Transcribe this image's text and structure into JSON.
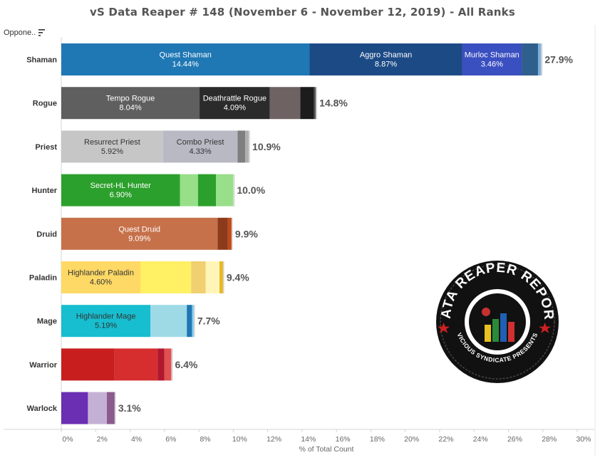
{
  "title": "vS Data Reaper # 148 (November 6 - November 12, 2019) - All Ranks",
  "sort_header": {
    "label": "Oppone..",
    "icon": "sort-descending-icon"
  },
  "logo": {
    "top_text": "DATA REAPER REPORT",
    "bottom_text": "VICIOUS SYNDICATE PRESENTS"
  },
  "chart_data": {
    "type": "bar",
    "orientation": "horizontal",
    "stacked": true,
    "xlabel": "% of Total Count",
    "ylabel": "",
    "xlim": [
      0,
      30
    ],
    "xticks": [
      "0%",
      "2%",
      "4%",
      "6%",
      "8%",
      "10%",
      "12%",
      "14%",
      "16%",
      "18%",
      "20%",
      "22%",
      "24%",
      "26%",
      "28%",
      "30%"
    ],
    "grid": false,
    "categories": [
      "Shaman",
      "Rogue",
      "Priest",
      "Hunter",
      "Druid",
      "Paladin",
      "Mage",
      "Warrior",
      "Warlock"
    ],
    "totals": [
      "27.9%",
      "14.8%",
      "10.9%",
      "10.0%",
      "9.9%",
      "9.4%",
      "7.7%",
      "6.4%",
      "3.1%"
    ],
    "bars": [
      {
        "category": "Shaman",
        "segments": [
          {
            "name": "Quest Shaman",
            "value": 14.44,
            "label": "14.44%",
            "color": "#1f77b4",
            "text_color": "#ffffff"
          },
          {
            "name": "Aggro Shaman",
            "value": 8.87,
            "label": "8.87%",
            "color": "#1c4a85",
            "text_color": "#ffffff"
          },
          {
            "name": "Murloc Shaman",
            "value": 3.46,
            "label": "3.46%",
            "color": "#3a4fc0",
            "text_color": "#ffffff"
          },
          {
            "name": "",
            "value": 0.95,
            "label": "",
            "color": "#2f5f8c"
          },
          {
            "name": "",
            "value": 0.18,
            "label": "",
            "color": "#7fb0dd"
          }
        ]
      },
      {
        "category": "Rogue",
        "segments": [
          {
            "name": "Tempo Rogue",
            "value": 8.04,
            "label": "8.04%",
            "color": "#5f5f5f",
            "text_color": "#ffffff"
          },
          {
            "name": "Deathrattle Rogue",
            "value": 4.09,
            "label": "4.09%",
            "color": "#2b2b2b",
            "text_color": "#ffffff"
          },
          {
            "name": "",
            "value": 1.77,
            "label": "",
            "color": "#6e6362"
          },
          {
            "name": "",
            "value": 0.8,
            "label": "",
            "color": "#1c1c1c"
          },
          {
            "name": "",
            "value": 0.1,
            "label": "",
            "color": "#555555"
          }
        ]
      },
      {
        "category": "Priest",
        "segments": [
          {
            "name": "Resurrect Priest",
            "value": 5.92,
            "label": "5.92%",
            "color": "#c6c6c6",
            "text_color": "#333333"
          },
          {
            "name": "Combo Priest",
            "value": 4.33,
            "label": "4.33%",
            "color": "#b9b9c4",
            "text_color": "#333333"
          },
          {
            "name": "",
            "value": 0.45,
            "label": "",
            "color": "#7f7f7f"
          },
          {
            "name": "",
            "value": 0.2,
            "label": "",
            "color": "#b0b0b0"
          }
        ]
      },
      {
        "category": "Hunter",
        "segments": [
          {
            "name": "Secret-HL Hunter",
            "value": 6.9,
            "label": "6.90%",
            "color": "#2ca02c",
            "text_color": "#ffffff"
          },
          {
            "name": "",
            "value": 1.05,
            "label": "",
            "color": "#98df8a"
          },
          {
            "name": "",
            "value": 1.05,
            "label": "",
            "color": "#2ca02c"
          },
          {
            "name": "",
            "value": 1.0,
            "label": "",
            "color": "#98df8a"
          }
        ]
      },
      {
        "category": "Druid",
        "segments": [
          {
            "name": "Quest Druid",
            "value": 9.09,
            "label": "9.09%",
            "color": "#c6714a",
            "text_color": "#ffffff"
          },
          {
            "name": "",
            "value": 0.6,
            "label": "",
            "color": "#8c3a1c"
          },
          {
            "name": "",
            "value": 0.21,
            "label": "",
            "color": "#c04a1a"
          }
        ]
      },
      {
        "category": "Paladin",
        "segments": [
          {
            "name": "Highlander Paladin",
            "value": 4.6,
            "label": "4.60%",
            "color": "#ffd966",
            "text_color": "#333333"
          },
          {
            "name": "",
            "value": 2.95,
            "label": "",
            "color": "#fff064"
          },
          {
            "name": "",
            "value": 0.85,
            "label": "",
            "color": "#f0d070"
          },
          {
            "name": "",
            "value": 0.8,
            "label": "",
            "color": "#fff5b8"
          },
          {
            "name": "",
            "value": 0.2,
            "label": "",
            "color": "#e8b820"
          }
        ]
      },
      {
        "category": "Mage",
        "segments": [
          {
            "name": "Highlander Mage",
            "value": 5.19,
            "label": "5.19%",
            "color": "#17becf",
            "text_color": "#333333"
          },
          {
            "name": "",
            "value": 2.11,
            "label": "",
            "color": "#9edae5"
          },
          {
            "name": "",
            "value": 0.3,
            "label": "",
            "color": "#1f77b4"
          },
          {
            "name": "",
            "value": 0.1,
            "label": "",
            "color": "#7fc8e8"
          }
        ]
      },
      {
        "category": "Warrior",
        "segments": [
          {
            "name": "",
            "value": 3.1,
            "label": "",
            "color": "#c81e1e"
          },
          {
            "name": "",
            "value": 2.5,
            "label": "",
            "color": "#d62e2e"
          },
          {
            "name": "",
            "value": 0.4,
            "label": "",
            "color": "#b01830"
          },
          {
            "name": "",
            "value": 0.4,
            "label": "",
            "color": "#e05050"
          }
        ]
      },
      {
        "category": "Warlock",
        "segments": [
          {
            "name": "",
            "value": 1.55,
            "label": "",
            "color": "#6a2fb3"
          },
          {
            "name": "",
            "value": 1.1,
            "label": "",
            "color": "#c5b0d5"
          },
          {
            "name": "",
            "value": 0.45,
            "label": "",
            "color": "#8c5a8c"
          }
        ]
      }
    ]
  }
}
